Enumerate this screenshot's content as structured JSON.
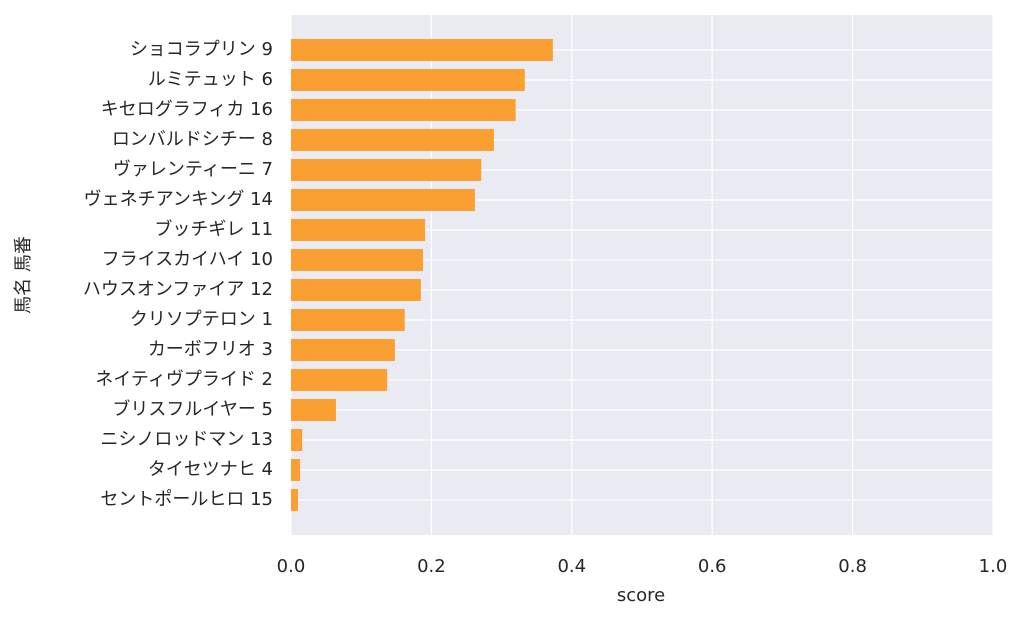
{
  "chart_data": {
    "type": "barh",
    "xlabel": "score",
    "ylabel": "馬名 馬番",
    "categories": [
      "ショコラプリン 9",
      "ルミテュット 6",
      "キセログラフィカ 16",
      "ロンバルドシチー 8",
      "ヴァレンティーニ 7",
      "ヴェネチアンキング 14",
      "ブッチギレ 11",
      "フライスカイハイ 10",
      "ハウスオンファイア 12",
      "クリソプテロン 1",
      "カーボフリオ 3",
      "ネイティヴプライド 2",
      "ブリスフルイヤー 5",
      "ニシノロッドマン 13",
      "タイセツナヒ 4",
      "セントポールヒロ 15"
    ],
    "values": [
      0.373,
      0.333,
      0.32,
      0.289,
      0.271,
      0.262,
      0.191,
      0.188,
      0.185,
      0.162,
      0.148,
      0.137,
      0.064,
      0.016,
      0.013,
      0.01
    ],
    "color": "#fa9f32",
    "xlim": [
      0,
      1.0
    ],
    "xticks": [
      {
        "value": 0,
        "label": "0.0"
      },
      0.2,
      0.4,
      0.6,
      0.8,
      {
        "value": 1.0,
        "label": "1.0"
      }
    ],
    "grid": true
  }
}
